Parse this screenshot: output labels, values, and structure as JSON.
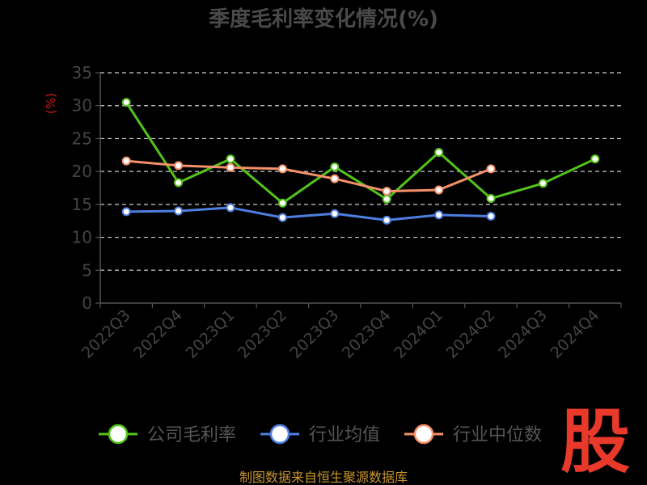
{
  "chart_data": {
    "type": "line",
    "title": "季度毛利率变化情况(%)",
    "ylabel": "(%)",
    "xlabel": "",
    "ylim": [
      0,
      35
    ],
    "yticks": [
      0,
      5,
      10,
      15,
      20,
      25,
      30,
      35
    ],
    "grid": true,
    "legend_position": "bottom",
    "categories": [
      "2022Q3",
      "2022Q4",
      "2023Q1",
      "2023Q2",
      "2023Q3",
      "2023Q4",
      "2024Q1",
      "2024Q2",
      "2024Q3",
      "2024Q4"
    ],
    "series": [
      {
        "name": "公司毛利率",
        "color": "#52c41a",
        "values": [
          30.5,
          18.3,
          21.9,
          15.2,
          20.7,
          15.8,
          22.9,
          15.9,
          18.2,
          21.9
        ]
      },
      {
        "name": "行业均值",
        "color": "#4e7fe0",
        "values": [
          13.9,
          14.0,
          14.5,
          13.0,
          13.6,
          12.6,
          13.4,
          13.2,
          null,
          null
        ]
      },
      {
        "name": "行业中位数",
        "color": "#f5916a",
        "values": [
          21.6,
          20.9,
          20.6,
          20.4,
          18.9,
          17.0,
          17.2,
          20.4,
          null,
          null
        ]
      }
    ]
  },
  "source_text": "制图数据来自恒生聚源数据库",
  "logo_text": "股",
  "colors": {
    "background": "#000000",
    "axis": "#555555",
    "grid": "#cccccc",
    "source": "#c9962b",
    "logo": "#e8392b"
  }
}
